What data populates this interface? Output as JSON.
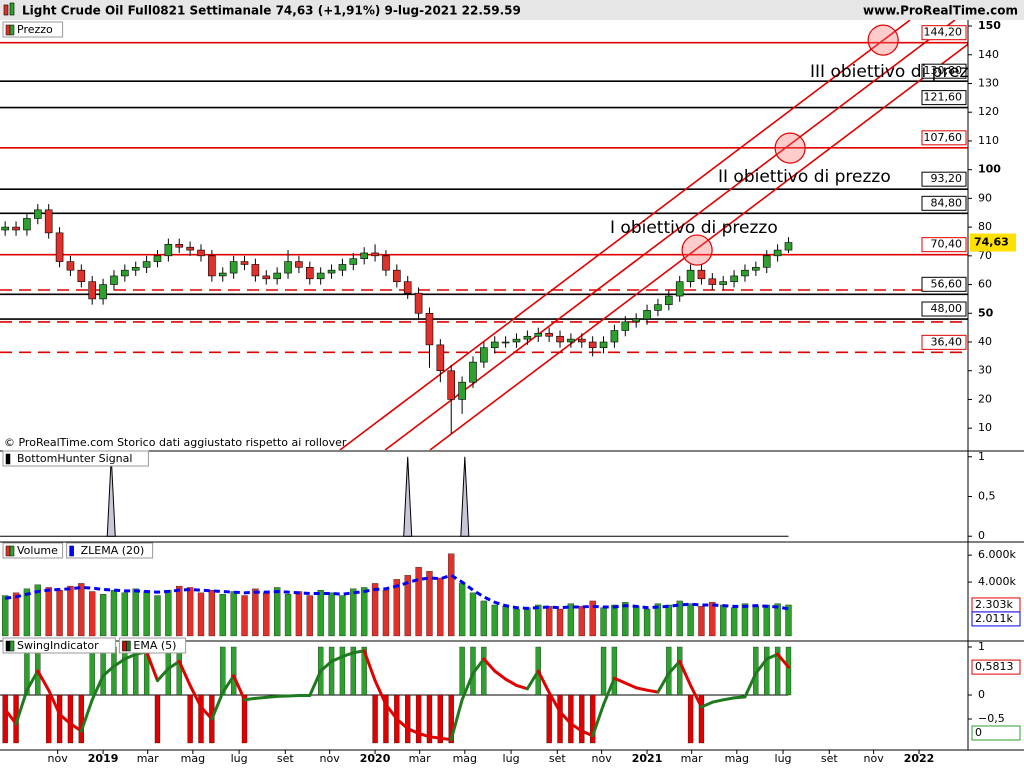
{
  "header": {
    "title": "Light Crude Oil Full0821 Settimanale 74,63 (+1,91%) 9-lug-2021 22.59.59",
    "site": "www.ProRealTime.com"
  },
  "chart_data": {
    "type": "candlestick",
    "name": "Prezzo",
    "up_color": "#2ea02e",
    "down_color": "#e0312b",
    "source": "© ProRealTime.com  Storico dati aggiustato rispetto ai rollover",
    "x": [
      2018.64,
      2018.68,
      2018.72,
      2018.76,
      2018.8,
      2018.84,
      2018.88,
      2018.92,
      2018.96,
      2019,
      2019.04,
      2019.08,
      2019.12,
      2019.16,
      2019.2,
      2019.24,
      2019.28,
      2019.32,
      2019.36,
      2019.4,
      2019.44,
      2019.48,
      2019.52,
      2019.56,
      2019.6,
      2019.64,
      2019.68,
      2019.72,
      2019.76,
      2019.8,
      2019.84,
      2019.88,
      2019.92,
      2019.96,
      2020,
      2020.04,
      2020.08,
      2020.12,
      2020.16,
      2020.2,
      2020.24,
      2020.28,
      2020.32,
      2020.36,
      2020.4,
      2020.44,
      2020.48,
      2020.52,
      2020.56,
      2020.6,
      2020.64,
      2020.68,
      2020.72,
      2020.76,
      2020.8,
      2020.84,
      2020.88,
      2020.92,
      2020.96,
      2021,
      2021.04,
      2021.08,
      2021.12,
      2021.16,
      2021.2,
      2021.24,
      2021.28,
      2021.32,
      2021.36,
      2021.4,
      2021.44,
      2021.48,
      2021.52
    ],
    "xlim": [
      2018.621,
      2022.18
    ],
    "xticks": [
      {
        "value": 2018.833,
        "label": "nov"
      },
      2019,
      {
        "value": 2019.164,
        "label": "mar"
      },
      {
        "value": 2019.33,
        "label": "mag"
      },
      {
        "value": 2019.5,
        "label": "lug"
      },
      {
        "value": 2019.67,
        "label": "set"
      },
      {
        "value": 2019.833,
        "label": "nov"
      },
      2020,
      {
        "value": 2020.164,
        "label": "mar"
      },
      {
        "value": 2020.33,
        "label": "mag"
      },
      {
        "value": 2020.5,
        "label": "lug"
      },
      {
        "value": 2020.67,
        "label": "set"
      },
      {
        "value": 2020.833,
        "label": "nov"
      },
      2021,
      {
        "value": 2021.164,
        "label": "mar"
      },
      {
        "value": 2021.33,
        "label": "mag"
      },
      {
        "value": 2021.5,
        "label": "lug"
      },
      {
        "value": 2021.67,
        "label": "set"
      },
      {
        "value": 2021.833,
        "label": "nov"
      },
      2022
    ],
    "open": [
      79,
      80,
      79,
      83,
      86,
      78,
      68,
      65,
      61,
      55,
      60,
      63,
      65,
      66,
      68,
      70,
      74,
      73,
      72,
      70,
      63,
      64,
      68,
      67,
      63,
      62,
      64,
      68,
      66,
      62,
      64,
      65,
      67,
      69,
      71,
      70,
      65,
      61,
      57,
      50,
      39,
      30,
      20,
      26,
      33,
      38,
      40,
      40,
      41,
      42,
      43,
      42,
      40,
      41,
      40,
      38,
      40,
      44,
      47,
      48,
      51,
      53,
      56,
      61,
      65,
      62,
      60,
      61,
      63,
      65,
      66,
      70,
      72
    ],
    "high": [
      82,
      82,
      85,
      88,
      88,
      80,
      70,
      67,
      63,
      62,
      65,
      67,
      68,
      70,
      72,
      76,
      76,
      75,
      74,
      72,
      66,
      70,
      70,
      69,
      65,
      66,
      72,
      70,
      68,
      66,
      67,
      69,
      71,
      73,
      74,
      72,
      67,
      63,
      59,
      52,
      41,
      32,
      28,
      35,
      40,
      42,
      42,
      43,
      44,
      45,
      45,
      44,
      43,
      43,
      42,
      42,
      46,
      49,
      50,
      53,
      55,
      58,
      63,
      67,
      67,
      64,
      63,
      65,
      67,
      68,
      72,
      74,
      76.5
    ],
    "low": [
      77,
      77,
      77,
      81,
      76,
      66,
      63,
      59,
      53,
      53,
      58,
      61,
      63,
      64,
      66,
      68,
      71,
      70,
      68,
      61,
      61,
      62,
      65,
      61,
      60,
      60,
      62,
      64,
      60,
      60,
      62,
      63,
      65,
      67,
      68,
      63,
      59,
      55,
      48,
      31,
      26,
      8,
      15,
      24,
      31,
      36,
      38,
      38,
      39,
      40,
      40,
      38,
      38,
      38,
      35,
      36,
      38,
      42,
      45,
      46,
      49,
      51,
      54,
      59,
      60,
      58,
      58,
      59,
      61,
      63,
      64,
      68,
      71
    ],
    "close": [
      80,
      79,
      83,
      86,
      78,
      68,
      65,
      61,
      55,
      60,
      63,
      65,
      66,
      68,
      70,
      74,
      73,
      72,
      70,
      63,
      64,
      68,
      67,
      63,
      62,
      64,
      68,
      66,
      62,
      64,
      65,
      67,
      69,
      71,
      70,
      65,
      61,
      57,
      50,
      39,
      30,
      20,
      26,
      33,
      38,
      40,
      40,
      41,
      42,
      43,
      42,
      40,
      41,
      40,
      38,
      40,
      44,
      47,
      48,
      51,
      53,
      56,
      61,
      65,
      62,
      60,
      61,
      63,
      65,
      66,
      70,
      72,
      74.63
    ],
    "last_price": {
      "value": 74.63,
      "label": "74,63",
      "color": "#ffe000"
    },
    "ylim": [
      2.4,
      152.1
    ],
    "yticks": [
      150,
      140,
      130,
      120,
      110,
      100,
      90,
      80,
      70,
      60,
      50,
      40,
      30,
      20,
      10
    ],
    "levels": [
      {
        "value": 144.2,
        "label": "144,20",
        "color": "#e00000",
        "style": "solid"
      },
      {
        "value": 130.8,
        "label": "130,80",
        "color": "#000000",
        "style": "solid"
      },
      {
        "value": 121.6,
        "label": "121,60",
        "color": "#000000",
        "style": "solid"
      },
      {
        "value": 107.6,
        "label": "107,60",
        "color": "#e00000",
        "style": "solid"
      },
      {
        "value": 93.2,
        "label": "93,20",
        "color": "#000000",
        "style": "solid"
      },
      {
        "value": 84.8,
        "label": "84,80",
        "color": "#000000",
        "style": "solid"
      },
      {
        "value": 70.4,
        "label": "70,40",
        "color": "#e00000",
        "style": "solid"
      },
      {
        "value": 58.1,
        "color": "#e00000",
        "style": "dashed"
      },
      {
        "value": 56.6,
        "label": "56,60",
        "color": "#000000",
        "style": "solid"
      },
      {
        "value": 48,
        "label": "48,00",
        "color": "#000000",
        "style": "solid"
      },
      {
        "value": 47,
        "color": "#e00000",
        "style": "dashed"
      },
      {
        "value": 36.4,
        "label": "36,40",
        "color": "#e00000",
        "style": "dashed"
      }
    ],
    "channels": [
      {
        "x": [
          2019.871,
          2021.967
        ],
        "y": [
          2.4,
          152.1
        ]
      },
      {
        "x": [
          2020.037,
          2022.132
        ],
        "y": [
          2.4,
          152.1
        ]
      },
      {
        "x": [
          2020.202,
          2022.298
        ],
        "y": [
          2.4,
          152.1
        ]
      }
    ],
    "channel_color": "#e00000",
    "circles": [
      {
        "x": 2021.868,
        "y": 145.1
      },
      {
        "x": 2021.526,
        "y": 107.5
      },
      {
        "x": 2021.184,
        "y": 72
      }
    ],
    "annotations": [
      "III obiettivo di prezzo",
      "II obiettivo di prezzo",
      "I obiettivo di prezzo"
    ],
    "bottom_hunter": {
      "type": "spike",
      "name": "BottomHunter Signal",
      "x": [
        2019.03,
        2020.12,
        2020.33
      ],
      "values": [
        1,
        1,
        1
      ],
      "ylim": [
        -0.06,
        1.06
      ],
      "yticks": [
        1,
        {
          "value": 0.5,
          "label": "0,5"
        },
        0
      ],
      "color": "#c8c8d8"
    },
    "volume": {
      "type": "bar",
      "name": "Volume",
      "ylim": [
        -300,
        6900
      ],
      "yticks": [
        {
          "value": 6000,
          "label": "6.000k"
        },
        {
          "value": 4000,
          "label": "4.000k"
        }
      ],
      "values": [
        3000,
        3200,
        3500,
        3800,
        3600,
        3400,
        3700,
        3900,
        3300,
        3100,
        3400,
        3200,
        3500,
        3300,
        3000,
        3400,
        3700,
        3600,
        3200,
        3400,
        3100,
        3300,
        3000,
        3500,
        3200,
        3600,
        3100,
        3300,
        3000,
        3400,
        3200,
        3000,
        3500,
        3600,
        3900,
        3400,
        4200,
        4500,
        5100,
        4800,
        4300,
        6100,
        3900,
        3200,
        2600,
        2300,
        2200,
        2000,
        2100,
        2300,
        2200,
        2000,
        2400,
        2200,
        2600,
        2100,
        2300,
        2500,
        2200,
        2000,
        2400,
        2300,
        2600,
        2400,
        2200,
        2500,
        2300,
        2100,
        2400,
        2200,
        2300,
        2400,
        2303
      ],
      "zlema": {
        "name": "ZLEMA (20)",
        "color": "#0000ff",
        "values": [
          2800,
          2900,
          3100,
          3300,
          3400,
          3450,
          3500,
          3600,
          3550,
          3450,
          3400,
          3350,
          3350,
          3300,
          3250,
          3300,
          3400,
          3450,
          3400,
          3350,
          3300,
          3250,
          3200,
          3250,
          3250,
          3300,
          3250,
          3200,
          3150,
          3150,
          3150,
          3100,
          3200,
          3300,
          3450,
          3500,
          3700,
          3950,
          4200,
          4300,
          4250,
          4500,
          4000,
          3400,
          2900,
          2500,
          2250,
          2100,
          2050,
          2100,
          2150,
          2100,
          2150,
          2150,
          2200,
          2150,
          2150,
          2250,
          2200,
          2100,
          2150,
          2200,
          2300,
          2350,
          2300,
          2300,
          2250,
          2200,
          2200,
          2250,
          2200,
          2150,
          2011
        ]
      },
      "current": [
        {
          "value": 2303,
          "label": "2.303k",
          "color": "#e00000"
        },
        {
          "value": 2011,
          "label": "2.011k",
          "color": "#0000ff"
        }
      ]
    },
    "swing": {
      "type": "bar",
      "name": "SwingIndicator",
      "up_color": "#2ea02e",
      "down_color": "#e00000",
      "ylim": [
        -1.146,
        1.104
      ],
      "yticks": [
        1,
        0,
        {
          "value": -0.5,
          "label": "−0,5"
        }
      ],
      "values": [
        -1,
        -1,
        1,
        1,
        -1,
        -1,
        -1,
        -1,
        1,
        1,
        1,
        1,
        1,
        1,
        -1,
        1,
        1,
        -1,
        -1,
        -1,
        1,
        1,
        -1,
        0,
        0,
        0,
        0,
        0,
        0,
        1,
        1,
        1,
        1,
        1,
        -1,
        -1,
        -1,
        -1,
        -1,
        -1,
        -1,
        -1,
        1,
        1,
        1,
        0,
        0,
        0,
        0,
        1,
        -1,
        -1,
        -1,
        -1,
        -1,
        1,
        1,
        0,
        0,
        0,
        0,
        1,
        1,
        -1,
        -1,
        0,
        0,
        0,
        0,
        1,
        1,
        1,
        1
      ],
      "ema": {
        "name": "EMA (5)",
        "up_color": "#1f7a1f",
        "down_color": "#e00000",
        "values": [
          -0.3,
          -0.6,
          0.1,
          0.5,
          0.1,
          -0.4,
          -0.6,
          -0.75,
          -0.1,
          0.4,
          0.6,
          0.75,
          0.85,
          0.9,
          0.3,
          0.55,
          0.7,
          0.2,
          -0.25,
          -0.5,
          0.05,
          0.4,
          -0.1,
          -0.07,
          -0.05,
          -0.03,
          -0.02,
          -0.01,
          -0.01,
          0.5,
          0.7,
          0.8,
          0.88,
          0.92,
          0.3,
          -0.2,
          -0.5,
          -0.7,
          -0.8,
          -0.87,
          -0.9,
          -0.93,
          -0.1,
          0.45,
          0.75,
          0.5,
          0.33,
          0.2,
          0.13,
          0.5,
          0.05,
          -0.35,
          -0.6,
          -0.75,
          -0.85,
          -0.2,
          0.35,
          0.25,
          0.15,
          0.1,
          0.06,
          0.45,
          0.7,
          0.2,
          -0.25,
          -0.15,
          -0.1,
          -0.06,
          -0.04,
          0.45,
          0.75,
          0.85,
          0.5813
        ]
      },
      "current": [
        {
          "value": 0.5813,
          "label": "0,5813",
          "color": "#e00000"
        },
        {
          "value": 0,
          "label": "0",
          "color": "#2ea02e"
        }
      ]
    }
  }
}
